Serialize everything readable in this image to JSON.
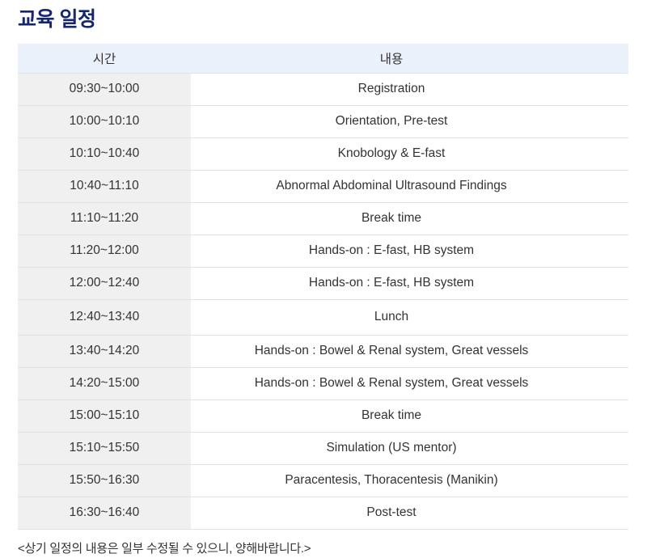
{
  "page": {
    "title": "교육 일정",
    "footnote": "<상기 일정의 내용은 일부 수정될 수 있으니, 양해바랍니다.>"
  },
  "table": {
    "headers": {
      "time": "시간",
      "content": "내용"
    },
    "rows": [
      {
        "time": "09:30~10:00",
        "content": "Registration"
      },
      {
        "time": "10:00~10:10",
        "content": "Orientation, Pre-test"
      },
      {
        "time": "10:10~10:40",
        "content": "Knobology & E-fast"
      },
      {
        "time": "10:40~11:10",
        "content": "Abnormal Abdominal Ultrasound Findings"
      },
      {
        "time": "11:10~11:20",
        "content": "Break time"
      },
      {
        "time": "11:20~12:00",
        "content": "Hands-on : E-fast, HB system"
      },
      {
        "time": "12:00~12:40",
        "content": "Hands-on : E-fast, HB system"
      },
      {
        "time": "12:40~13:40",
        "content": "Lunch"
      },
      {
        "time": "13:40~14:20",
        "content": "Hands-on : Bowel & Renal system, Great vessels"
      },
      {
        "time": "14:20~15:00",
        "content": "Hands-on : Bowel & Renal system, Great vessels"
      },
      {
        "time": "15:00~15:10",
        "content": "Break time"
      },
      {
        "time": "15:10~15:50",
        "content": "Simulation (US mentor)"
      },
      {
        "time": "15:50~16:30",
        "content": "Paracentesis, Thoracentesis (Manikin)"
      },
      {
        "time": "16:30~16:40",
        "content": "Post-test"
      }
    ]
  },
  "colors": {
    "title_navy": "#16266d",
    "header_bg": "#eaf1fb",
    "time_column_bg": "#f0f0f0",
    "divider": "#e2e2e2",
    "body_text": "#333333"
  }
}
